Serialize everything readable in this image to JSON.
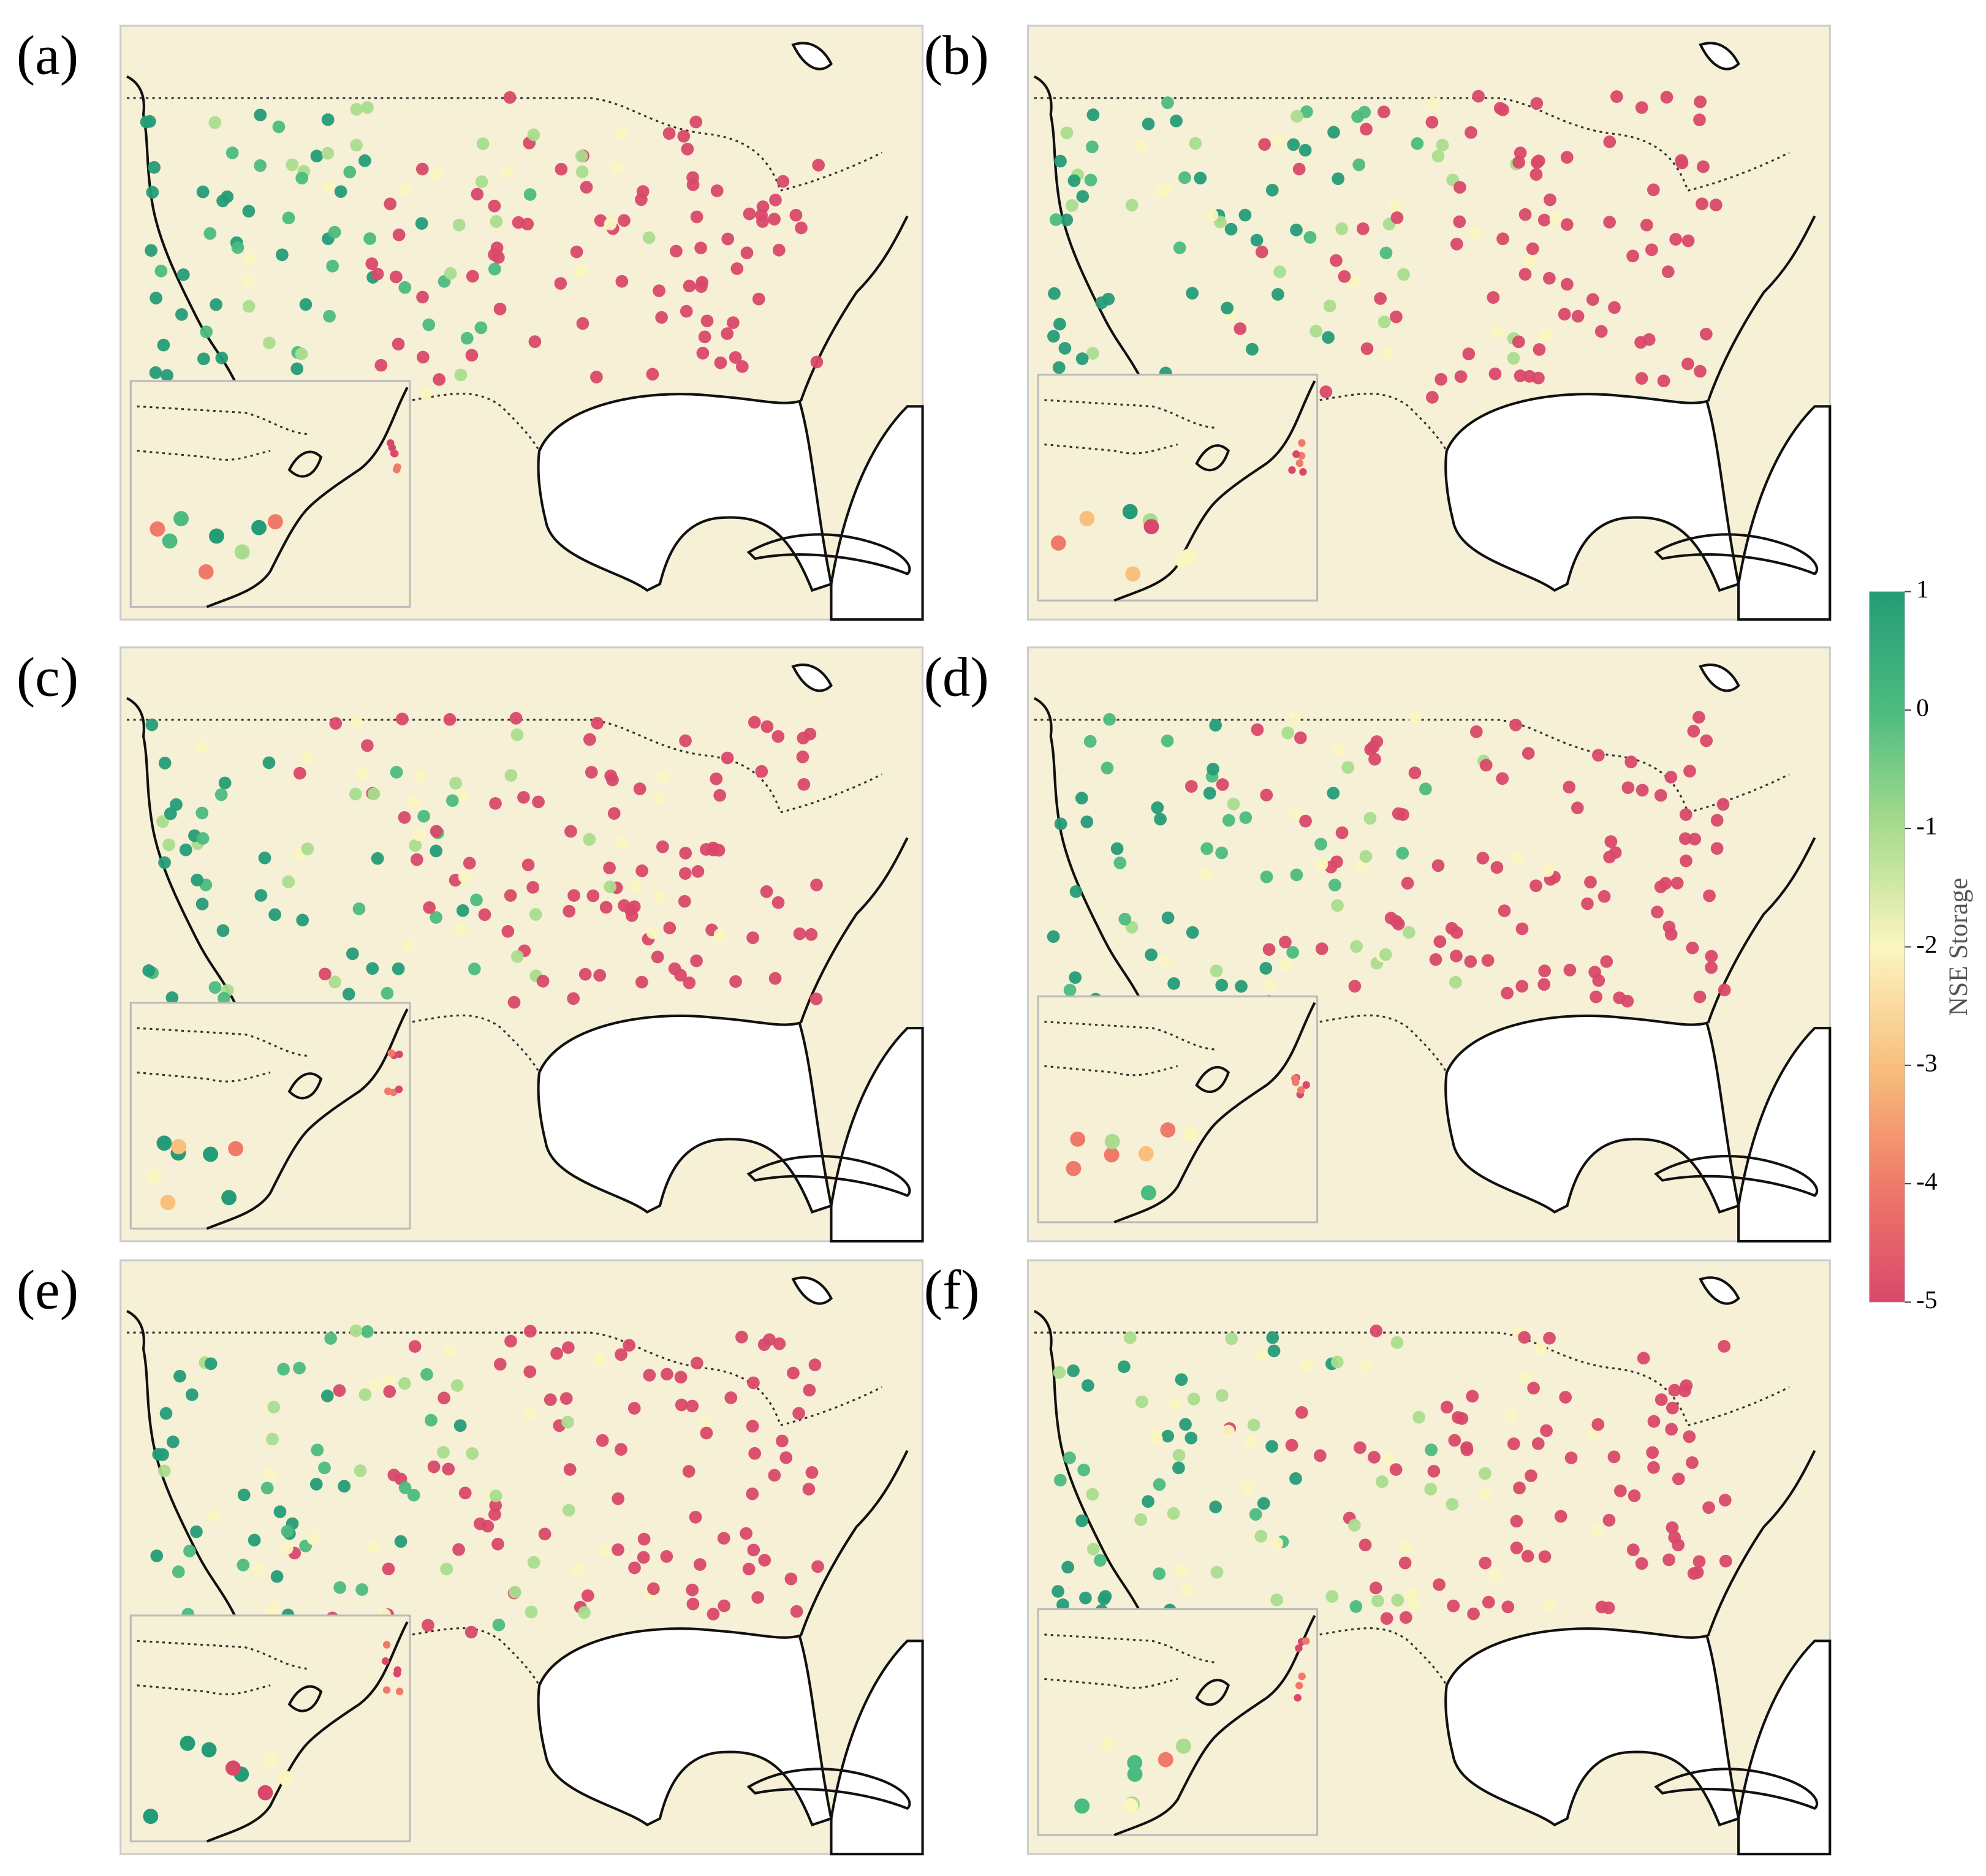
{
  "panels": [
    {
      "label": "(a)"
    },
    {
      "label": "(b)"
    },
    {
      "label": "(c)"
    },
    {
      "label": "(d)"
    },
    {
      "label": "(e)"
    },
    {
      "label": "(f)"
    }
  ],
  "colorbar": {
    "label": "NSE Storage",
    "lim": [
      -5,
      1
    ],
    "ticks": [
      1,
      0,
      -1,
      -2,
      -3,
      -4,
      -5
    ],
    "colors": [
      "#d9486a",
      "#f07a6a",
      "#f8c07c",
      "#fbf5c0",
      "#a9dc8e",
      "#4cbb7f",
      "#259c77"
    ]
  }
}
